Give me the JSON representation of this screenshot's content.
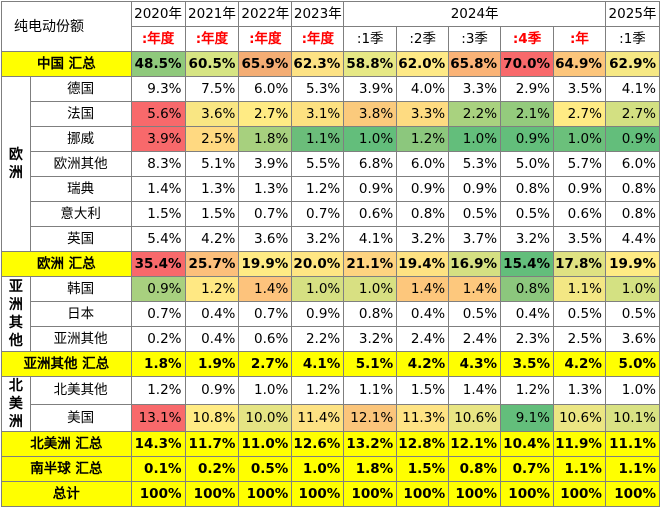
{
  "corner_title": "纯电动份额",
  "years": [
    "2020年",
    "2021年",
    "2022年",
    "2023年",
    "2024年",
    "2025年"
  ],
  "sub_headers": [
    ":年度",
    ":年度",
    ":年度",
    ":年度",
    ":1季",
    ":2季",
    ":3季",
    ":4季",
    ":年",
    ":1季"
  ],
  "regions": {
    "europe": "欧洲",
    "asia_other": "亚洲其他",
    "north_america": "北美洲"
  },
  "rows": {
    "china_total": {
      "label": "中国 汇总",
      "values": [
        "48.5%",
        "60.5%",
        "65.9%",
        "62.3%",
        "58.8%",
        "62.0%",
        "65.8%",
        "70.0%",
        "64.9%",
        "62.9%"
      ]
    },
    "germany": {
      "label": "德国",
      "values": [
        "9.3%",
        "7.5%",
        "6.0%",
        "5.3%",
        "3.9%",
        "4.0%",
        "3.3%",
        "2.9%",
        "3.5%",
        "4.1%"
      ]
    },
    "france": {
      "label": "法国",
      "values": [
        "5.6%",
        "3.6%",
        "2.7%",
        "3.1%",
        "3.8%",
        "3.3%",
        "2.2%",
        "2.1%",
        "2.7%",
        "2.7%"
      ]
    },
    "norway": {
      "label": "挪威",
      "values": [
        "3.9%",
        "2.5%",
        "1.8%",
        "1.1%",
        "1.0%",
        "1.2%",
        "1.0%",
        "0.9%",
        "1.0%",
        "0.9%"
      ]
    },
    "europe_other": {
      "label": "欧洲其他",
      "values": [
        "8.3%",
        "5.1%",
        "3.9%",
        "5.5%",
        "6.8%",
        "6.0%",
        "5.3%",
        "5.0%",
        "5.7%",
        "6.0%"
      ]
    },
    "sweden": {
      "label": "瑞典",
      "values": [
        "1.4%",
        "1.3%",
        "1.3%",
        "1.2%",
        "0.9%",
        "0.9%",
        "0.9%",
        "0.8%",
        "0.9%",
        "0.8%"
      ]
    },
    "italy": {
      "label": "意大利",
      "values": [
        "1.5%",
        "1.5%",
        "0.7%",
        "0.7%",
        "0.6%",
        "0.8%",
        "0.5%",
        "0.5%",
        "0.6%",
        "0.8%"
      ]
    },
    "uk": {
      "label": "英国",
      "values": [
        "5.4%",
        "4.2%",
        "3.6%",
        "3.2%",
        "4.1%",
        "3.2%",
        "3.7%",
        "3.2%",
        "3.5%",
        "4.4%"
      ]
    },
    "europe_total": {
      "label": "欧洲 汇总",
      "values": [
        "35.4%",
        "25.7%",
        "19.9%",
        "20.0%",
        "21.1%",
        "19.4%",
        "16.9%",
        "15.4%",
        "17.8%",
        "19.9%"
      ]
    },
    "korea": {
      "label": "韩国",
      "values": [
        "0.9%",
        "1.2%",
        "1.4%",
        "1.0%",
        "1.0%",
        "1.4%",
        "1.4%",
        "0.8%",
        "1.1%",
        "1.0%"
      ]
    },
    "japan": {
      "label": "日本",
      "values": [
        "0.7%",
        "0.4%",
        "0.7%",
        "0.9%",
        "0.8%",
        "0.4%",
        "0.5%",
        "0.4%",
        "0.5%",
        "0.5%"
      ]
    },
    "asia_other": {
      "label": "亚洲其他",
      "values": [
        "0.2%",
        "0.4%",
        "0.6%",
        "2.2%",
        "3.2%",
        "2.4%",
        "2.4%",
        "2.3%",
        "2.5%",
        "3.6%"
      ]
    },
    "asia_other_total": {
      "label": "亚洲其他 汇总",
      "values": [
        "1.8%",
        "1.9%",
        "2.7%",
        "4.1%",
        "5.1%",
        "4.2%",
        "4.3%",
        "3.5%",
        "4.2%",
        "5.0%"
      ]
    },
    "na_other": {
      "label": "北美其他",
      "values": [
        "1.2%",
        "0.9%",
        "1.0%",
        "1.2%",
        "1.1%",
        "1.5%",
        "1.4%",
        "1.2%",
        "1.3%",
        "1.0%"
      ]
    },
    "usa": {
      "label": "美国",
      "values": [
        "13.1%",
        "10.8%",
        "10.0%",
        "11.4%",
        "12.1%",
        "11.3%",
        "10.6%",
        "9.1%",
        "10.6%",
        "10.1%"
      ]
    },
    "na_total": {
      "label": "北美洲 汇总",
      "values": [
        "14.3%",
        "11.7%",
        "11.0%",
        "12.6%",
        "13.2%",
        "12.8%",
        "12.1%",
        "10.4%",
        "11.9%",
        "11.1%"
      ]
    },
    "south_total": {
      "label": "南半球 汇总",
      "values": [
        "0.1%",
        "0.2%",
        "0.5%",
        "1.0%",
        "1.8%",
        "1.5%",
        "0.8%",
        "0.7%",
        "1.1%",
        "1.1%"
      ]
    },
    "grand_total": {
      "label": "总计",
      "values": [
        "100%",
        "100%",
        "100%",
        "100%",
        "100%",
        "100%",
        "100%",
        "100%",
        "100%",
        "100%"
      ]
    }
  },
  "heat_colors": {
    "china_total": [
      "#8fc97c",
      "#d6e483",
      "#f4ad74",
      "#fde284",
      "#e6e885",
      "#fee986",
      "#fab377",
      "#f8696b",
      "#fcc57b",
      "#f6e884"
    ],
    "france": [
      "#f8696b",
      "#f9e683",
      "#ffeb84",
      "#fde181",
      "#fbca7c",
      "#fedb81",
      "#a9d27f",
      "#94cb7d",
      "#ffeb84",
      "#d3e082"
    ],
    "norway": [
      "#f8696b",
      "#ffd981",
      "#a7d07e",
      "#6bbd7a",
      "#63be7b",
      "#8cc77d",
      "#63be7b",
      "#63be7b",
      "#6bc07b",
      "#63be7b"
    ],
    "europe_total": [
      "#f8696b",
      "#fcbf7b",
      "#ffeb84",
      "#ffe683",
      "#fed380",
      "#fee282",
      "#d5e082",
      "#63be7b",
      "#dfe282",
      "#ffeb84"
    ],
    "korea": [
      "#a8d07f",
      "#ffe883",
      "#fdc37c",
      "#d6e082",
      "#d8e082",
      "#fdc77c",
      "#fdc87d",
      "#8cc77d",
      "#f3e784",
      "#d4e182"
    ],
    "usa": [
      "#f8696b",
      "#ffeb84",
      "#e5e483",
      "#fde283",
      "#fbc57b",
      "#fee384",
      "#e8e583",
      "#63be7b",
      "#ebe683",
      "#d9e283"
    ]
  }
}
